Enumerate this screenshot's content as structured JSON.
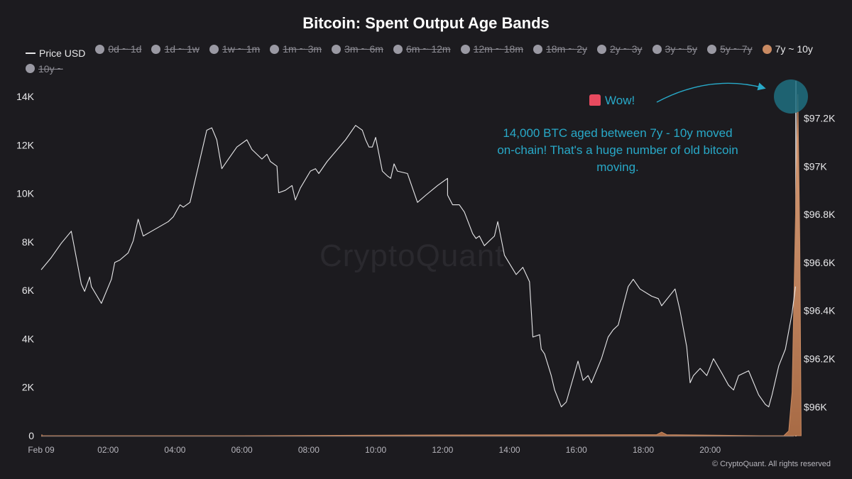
{
  "title": "Bitcoin: Spent Output Age Bands",
  "legend": [
    {
      "label": "Price USD",
      "kind": "line",
      "active": true,
      "color": "#e8e8ea"
    },
    {
      "label": "0d ~ 1d",
      "kind": "dot",
      "active": false,
      "color": "#9a99a3"
    },
    {
      "label": "1d ~ 1w",
      "kind": "dot",
      "active": false,
      "color": "#9a99a3"
    },
    {
      "label": "1w ~ 1m",
      "kind": "dot",
      "active": false,
      "color": "#9a99a3"
    },
    {
      "label": "1m ~ 3m",
      "kind": "dot",
      "active": false,
      "color": "#9a99a3"
    },
    {
      "label": "3m ~ 6m",
      "kind": "dot",
      "active": false,
      "color": "#9a99a3"
    },
    {
      "label": "6m ~ 12m",
      "kind": "dot",
      "active": false,
      "color": "#9a99a3"
    },
    {
      "label": "12m ~ 18m",
      "kind": "dot",
      "active": false,
      "color": "#9a99a3"
    },
    {
      "label": "18m ~ 2y",
      "kind": "dot",
      "active": false,
      "color": "#9a99a3"
    },
    {
      "label": "2y ~ 3y",
      "kind": "dot",
      "active": false,
      "color": "#9a99a3"
    },
    {
      "label": "3y ~ 5y",
      "kind": "dot",
      "active": false,
      "color": "#9a99a3"
    },
    {
      "label": "5y ~ 7y",
      "kind": "dot",
      "active": false,
      "color": "#9a99a3"
    },
    {
      "label": "7y ~ 10y",
      "kind": "dot",
      "active": true,
      "color": "#c98a62"
    },
    {
      "label": "10y ~",
      "kind": "dot",
      "active": false,
      "color": "#9a99a3"
    }
  ],
  "annotations": {
    "wow": "Wow!",
    "note": "14,000 BTC aged between 7y - 10y moved on-chain! That's a huge number of old bitcoin moving."
  },
  "watermark": "CryptoQuant",
  "footer": "© CryptoQuant. All rights reserved",
  "chart_data": {
    "type": "line",
    "title": "Bitcoin: Spent Output Age Bands",
    "x_ticks": [
      "Feb 09",
      "02:00",
      "04:00",
      "06:00",
      "08:00",
      "10:00",
      "12:00",
      "14:00",
      "16:00",
      "18:00",
      "20:00"
    ],
    "x_range_hours": [
      0,
      22.5
    ],
    "y_left": {
      "ticks": [
        "0",
        "2K",
        "4K",
        "6K",
        "8K",
        "10K",
        "12K",
        "14K"
      ],
      "range": [
        0,
        14000
      ]
    },
    "y_right": {
      "ticks": [
        "$96K",
        "$96.2K",
        "$96.4K",
        "$96.6K",
        "$96.8K",
        "$97K",
        "$97.2K"
      ],
      "range": [
        95880,
        97290
      ]
    },
    "grid": false,
    "legend_position": "top",
    "colors": {
      "price": "#e8e8ea",
      "band_7y_10y": "#c98a62",
      "annotation": "#28a9c8",
      "background": "#1c1b1f"
    },
    "series": [
      {
        "name": "Price USD",
        "axis": "right",
        "points": [
          [
            0.0,
            96570
          ],
          [
            0.3,
            96620
          ],
          [
            0.6,
            96680
          ],
          [
            0.9,
            96730
          ],
          [
            1.2,
            96510
          ],
          [
            1.3,
            96480
          ],
          [
            1.45,
            96540
          ],
          [
            1.5,
            96500
          ],
          [
            1.8,
            96430
          ],
          [
            2.1,
            96530
          ],
          [
            2.2,
            96600
          ],
          [
            2.35,
            96610
          ],
          [
            2.6,
            96640
          ],
          [
            2.75,
            96690
          ],
          [
            2.9,
            96780
          ],
          [
            3.05,
            96710
          ],
          [
            3.3,
            96730
          ],
          [
            3.8,
            96770
          ],
          [
            3.95,
            96790
          ],
          [
            4.15,
            96840
          ],
          [
            4.25,
            96830
          ],
          [
            4.45,
            96850
          ],
          [
            4.95,
            97150
          ],
          [
            5.1,
            97160
          ],
          [
            5.25,
            97110
          ],
          [
            5.4,
            96990
          ],
          [
            5.6,
            97030
          ],
          [
            5.85,
            97080
          ],
          [
            6.15,
            97110
          ],
          [
            6.3,
            97070
          ],
          [
            6.6,
            97030
          ],
          [
            6.75,
            97050
          ],
          [
            6.85,
            97020
          ],
          [
            7.05,
            97000
          ],
          [
            7.1,
            96890
          ],
          [
            7.3,
            96900
          ],
          [
            7.5,
            96920
          ],
          [
            7.6,
            96860
          ],
          [
            7.75,
            96910
          ],
          [
            8.05,
            96980
          ],
          [
            8.2,
            96990
          ],
          [
            8.3,
            96970
          ],
          [
            8.55,
            97020
          ],
          [
            9.1,
            97110
          ],
          [
            9.4,
            97170
          ],
          [
            9.6,
            97150
          ],
          [
            9.7,
            97110
          ],
          [
            9.8,
            97080
          ],
          [
            9.9,
            97080
          ],
          [
            10.0,
            97120
          ],
          [
            10.2,
            96980
          ],
          [
            10.35,
            96960
          ],
          [
            10.45,
            96950
          ],
          [
            10.55,
            97010
          ],
          [
            10.65,
            96980
          ],
          [
            10.95,
            96970
          ],
          [
            11.25,
            96850
          ],
          [
            11.5,
            96880
          ],
          [
            11.85,
            96920
          ],
          [
            12.15,
            96950
          ],
          [
            12.15,
            96880
          ],
          [
            12.3,
            96840
          ],
          [
            12.5,
            96840
          ],
          [
            12.65,
            96810
          ],
          [
            12.9,
            96720
          ],
          [
            13.0,
            96700
          ],
          [
            13.1,
            96710
          ],
          [
            13.25,
            96670
          ],
          [
            13.55,
            96710
          ],
          [
            13.65,
            96770
          ],
          [
            13.85,
            96630
          ],
          [
            14.2,
            96550
          ],
          [
            14.4,
            96580
          ],
          [
            14.6,
            96520
          ],
          [
            14.7,
            96290
          ],
          [
            14.9,
            96300
          ],
          [
            14.95,
            96240
          ],
          [
            15.05,
            96220
          ],
          [
            15.25,
            96130
          ],
          [
            15.35,
            96070
          ],
          [
            15.55,
            96000
          ],
          [
            15.7,
            96020
          ],
          [
            15.8,
            96070
          ],
          [
            16.05,
            96190
          ],
          [
            16.2,
            96110
          ],
          [
            16.35,
            96130
          ],
          [
            16.45,
            96100
          ],
          [
            16.75,
            96200
          ],
          [
            16.95,
            96290
          ],
          [
            17.1,
            96320
          ],
          [
            17.25,
            96340
          ],
          [
            17.4,
            96420
          ],
          [
            17.55,
            96500
          ],
          [
            17.7,
            96530
          ],
          [
            17.9,
            96490
          ],
          [
            18.25,
            96460
          ],
          [
            18.45,
            96450
          ],
          [
            18.55,
            96420
          ],
          [
            18.95,
            96490
          ],
          [
            19.1,
            96400
          ],
          [
            19.3,
            96250
          ],
          [
            19.4,
            96100
          ],
          [
            19.5,
            96130
          ],
          [
            19.7,
            96160
          ],
          [
            19.9,
            96130
          ],
          [
            20.1,
            96200
          ],
          [
            20.35,
            96140
          ],
          [
            20.55,
            96090
          ],
          [
            20.7,
            96070
          ],
          [
            20.85,
            96130
          ],
          [
            21.15,
            96150
          ],
          [
            21.45,
            96050
          ],
          [
            21.65,
            96010
          ],
          [
            21.75,
            96000
          ],
          [
            21.85,
            96050
          ],
          [
            22.05,
            96170
          ],
          [
            22.25,
            96240
          ],
          [
            22.45,
            96390
          ],
          [
            22.55,
            96500
          ]
        ]
      },
      {
        "name": "7y ~ 10y",
        "axis": "left",
        "type": "area",
        "points": [
          [
            0.0,
            0
          ],
          [
            6.0,
            0
          ],
          [
            12.0,
            30
          ],
          [
            18.4,
            40
          ],
          [
            18.55,
            150
          ],
          [
            18.7,
            40
          ],
          [
            21.5,
            0
          ],
          [
            22.2,
            0
          ],
          [
            22.35,
            200
          ],
          [
            22.45,
            1800
          ],
          [
            22.55,
            9000
          ],
          [
            22.62,
            14100
          ],
          [
            22.68,
            8000
          ],
          [
            22.72,
            0
          ]
        ]
      }
    ]
  }
}
